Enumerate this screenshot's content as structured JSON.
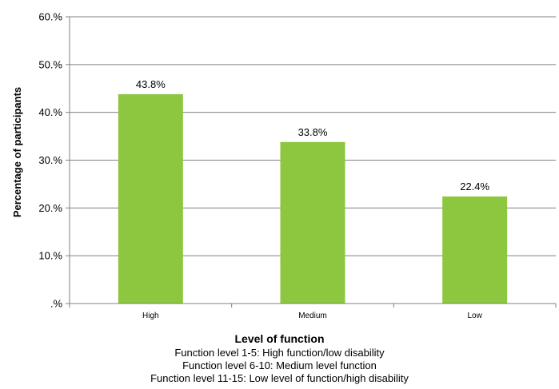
{
  "chart_data": {
    "type": "bar",
    "categories": [
      "High",
      "Medium",
      "Low"
    ],
    "values": [
      43.8,
      33.8,
      22.4
    ],
    "data_labels": [
      "43.8%",
      "33.8%",
      "22.4%"
    ],
    "ylabel": "Percentage of participants",
    "xlabel": "Level of function",
    "ylim": [
      0,
      60
    ],
    "yticks": [
      ".%",
      "10.%",
      "20.%",
      "30.%",
      "40.%",
      "50.%",
      "60.%"
    ],
    "grid": true,
    "bar_color": "#8dc63f",
    "notes": [
      "Function level 1-5: High function/low disability",
      "Function level 6-10: Medium level function",
      "Function level 11-15: Low level of function/high disability"
    ]
  }
}
